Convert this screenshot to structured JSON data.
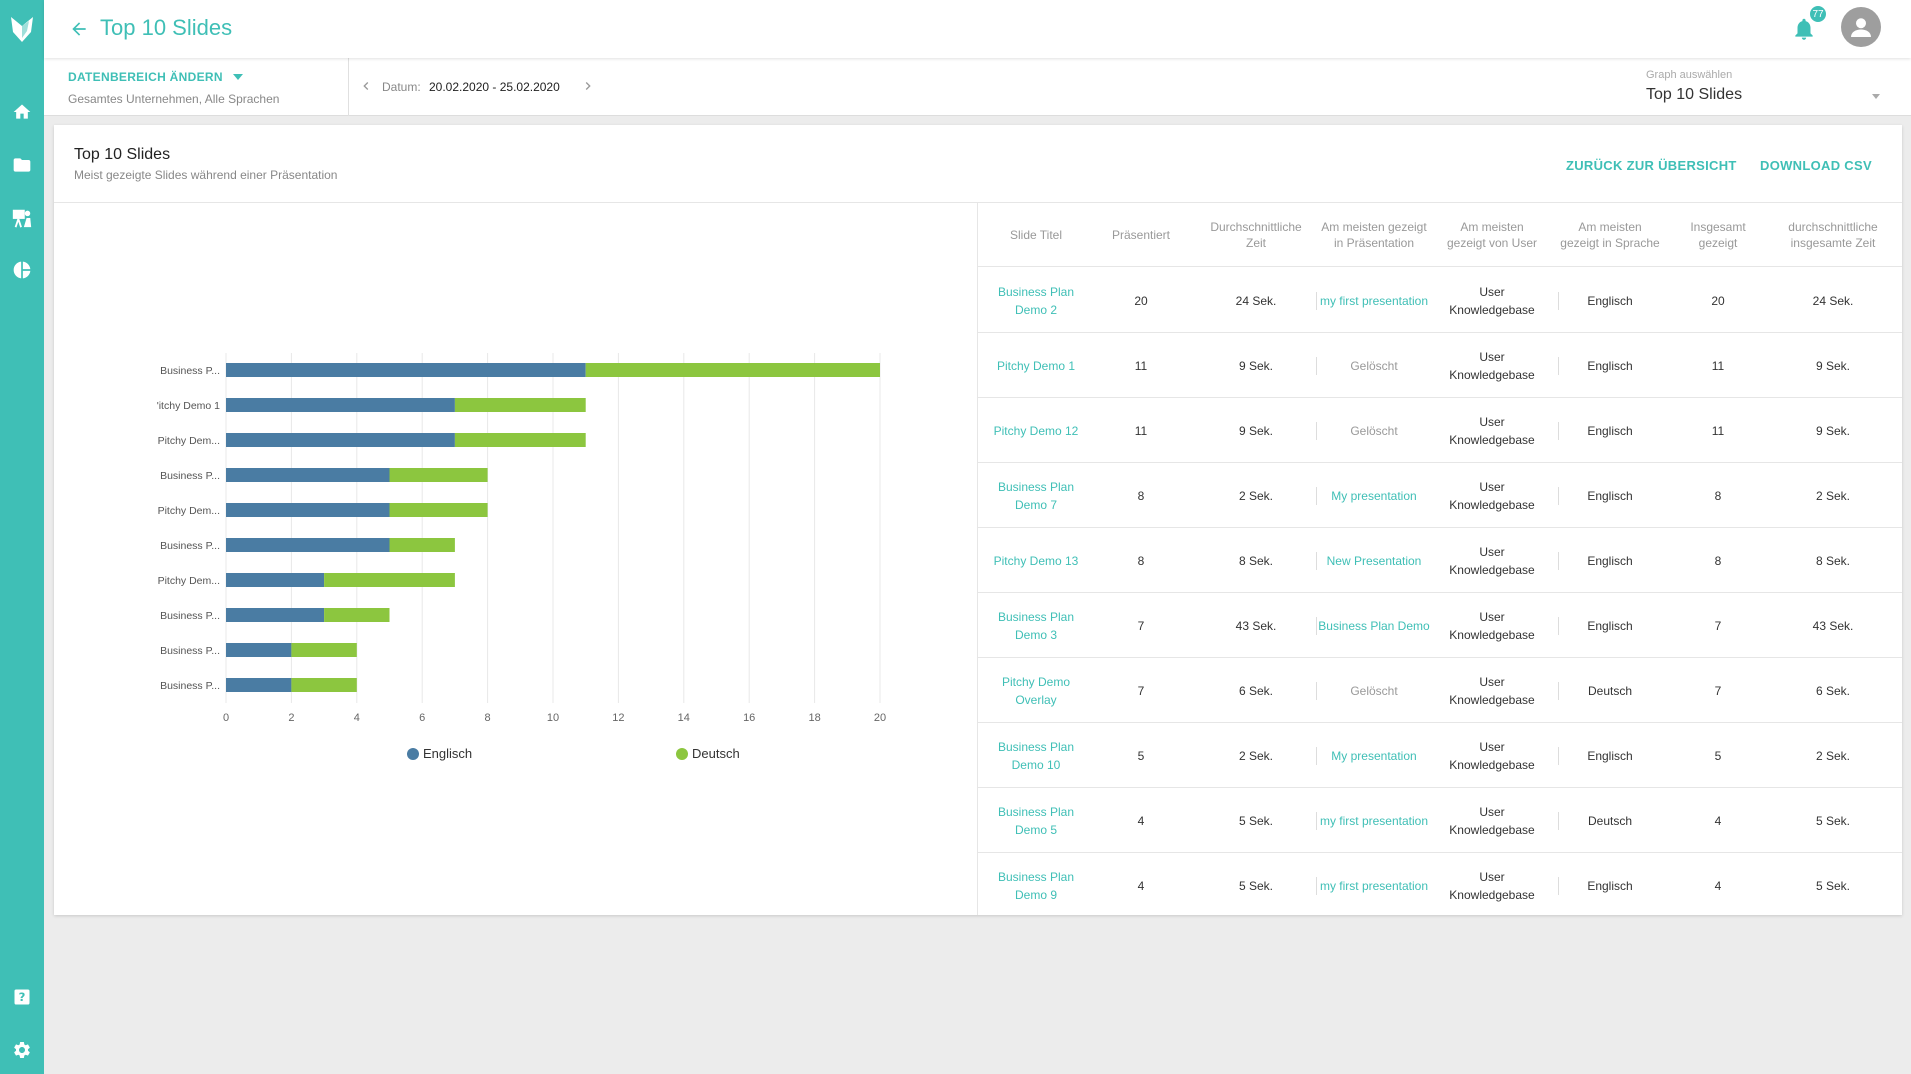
{
  "header": {
    "title": "Top 10 Slides",
    "notification_count": "77"
  },
  "filter": {
    "range_button": "DATENBEREICH ÄNDERN",
    "range_scope": "Gesamtes Unternehmen,  Alle Sprachen",
    "date_label": "Datum:",
    "date_value": "20.02.2020 - 25.02.2020",
    "graph_select_label": "Graph auswählen",
    "graph_select_value": "Top 10 Slides"
  },
  "card": {
    "title": "Top 10 Slides",
    "subtitle": "Meist gezeigte Slides während einer Präsentation",
    "back_link": "ZURÜCK ZUR ÜBERSICHT",
    "download_link": "DOWNLOAD CSV"
  },
  "colors": {
    "accent": "#3fbfb6",
    "series_englisch": "#4a7ca3",
    "series_deutsch": "#8cc63f"
  },
  "chart_data": {
    "type": "bar",
    "orientation": "horizontal",
    "stacked": true,
    "categories": [
      "Business P...",
      "'itchy Demo 1",
      "Pitchy Dem...",
      "Business P...",
      "Pitchy Dem...",
      "Business P...",
      "Pitchy Dem...",
      "Business P...",
      "Business P...",
      "Business P..."
    ],
    "series": [
      {
        "name": "Englisch",
        "color": "#4a7ca3",
        "values": [
          11,
          7,
          7,
          5,
          5,
          5,
          3,
          3,
          2,
          2
        ]
      },
      {
        "name": "Deutsch",
        "color": "#8cc63f",
        "values": [
          9,
          4,
          4,
          3,
          3,
          2,
          4,
          2,
          2,
          2
        ]
      }
    ],
    "xlim": [
      0,
      20
    ],
    "xticks": [
      0,
      2,
      4,
      6,
      8,
      10,
      12,
      14,
      16,
      18,
      20
    ],
    "grid": "vertical",
    "legend": "bottom"
  },
  "table": {
    "columns": [
      "Slide Titel",
      "Präsentiert",
      "Durchschnittliche Zeit",
      "Am meisten gezeigt in Präsentation",
      "Am meisten gezeigt von User",
      "Am meisten gezeigt in Sprache",
      "Insgesamt gezeigt",
      "durchschnittliche insgesamte Zeit"
    ],
    "rows": [
      {
        "title": "Business Plan Demo 2",
        "presented": "20",
        "avg": "24 Sek.",
        "pres": "my first presentation",
        "pres_deleted": false,
        "user": "User Knowledgebase",
        "lang": "Englisch",
        "total": "20",
        "total_avg": "24 Sek."
      },
      {
        "title": "Pitchy Demo 1",
        "presented": "11",
        "avg": "9 Sek.",
        "pres": "Gelöscht",
        "pres_deleted": true,
        "user": "User Knowledgebase",
        "lang": "Englisch",
        "total": "11",
        "total_avg": "9 Sek."
      },
      {
        "title": "Pitchy Demo 12",
        "presented": "11",
        "avg": "9 Sek.",
        "pres": "Gelöscht",
        "pres_deleted": true,
        "user": "User Knowledgebase",
        "lang": "Englisch",
        "total": "11",
        "total_avg": "9 Sek."
      },
      {
        "title": "Business Plan Demo 7",
        "presented": "8",
        "avg": "2 Sek.",
        "pres": "My presentation",
        "pres_deleted": false,
        "user": "User Knowledgebase",
        "lang": "Englisch",
        "total": "8",
        "total_avg": "2 Sek."
      },
      {
        "title": "Pitchy Demo 13",
        "presented": "8",
        "avg": "8 Sek.",
        "pres": "New Presentation",
        "pres_deleted": false,
        "user": "User Knowledgebase",
        "lang": "Englisch",
        "total": "8",
        "total_avg": "8 Sek."
      },
      {
        "title": "Business Plan Demo 3",
        "presented": "7",
        "avg": "43 Sek.",
        "pres": "Business Plan Demo",
        "pres_deleted": false,
        "user": "User Knowledgebase",
        "lang": "Englisch",
        "total": "7",
        "total_avg": "43 Sek."
      },
      {
        "title": "Pitchy Demo Overlay",
        "presented": "7",
        "avg": "6 Sek.",
        "pres": "Gelöscht",
        "pres_deleted": true,
        "user": "User Knowledgebase",
        "lang": "Deutsch",
        "total": "7",
        "total_avg": "6 Sek."
      },
      {
        "title": "Business Plan Demo 10",
        "presented": "5",
        "avg": "2 Sek.",
        "pres": "My presentation",
        "pres_deleted": false,
        "user": "User Knowledgebase",
        "lang": "Englisch",
        "total": "5",
        "total_avg": "2 Sek."
      },
      {
        "title": "Business Plan Demo 5",
        "presented": "4",
        "avg": "5 Sek.",
        "pres": "my first presentation",
        "pres_deleted": false,
        "user": "User Knowledgebase",
        "lang": "Deutsch",
        "total": "4",
        "total_avg": "5 Sek."
      },
      {
        "title": "Business Plan Demo 9",
        "presented": "4",
        "avg": "5 Sek.",
        "pres": "my first presentation",
        "pres_deleted": false,
        "user": "User Knowledgebase",
        "lang": "Englisch",
        "total": "4",
        "total_avg": "5 Sek."
      }
    ]
  },
  "icons": {
    "logo": "fox-logo-icon",
    "nav": [
      "home-icon",
      "folder-icon",
      "presenter-icon",
      "pie-chart-icon"
    ],
    "bottom": [
      "help-icon",
      "gear-icon"
    ]
  }
}
